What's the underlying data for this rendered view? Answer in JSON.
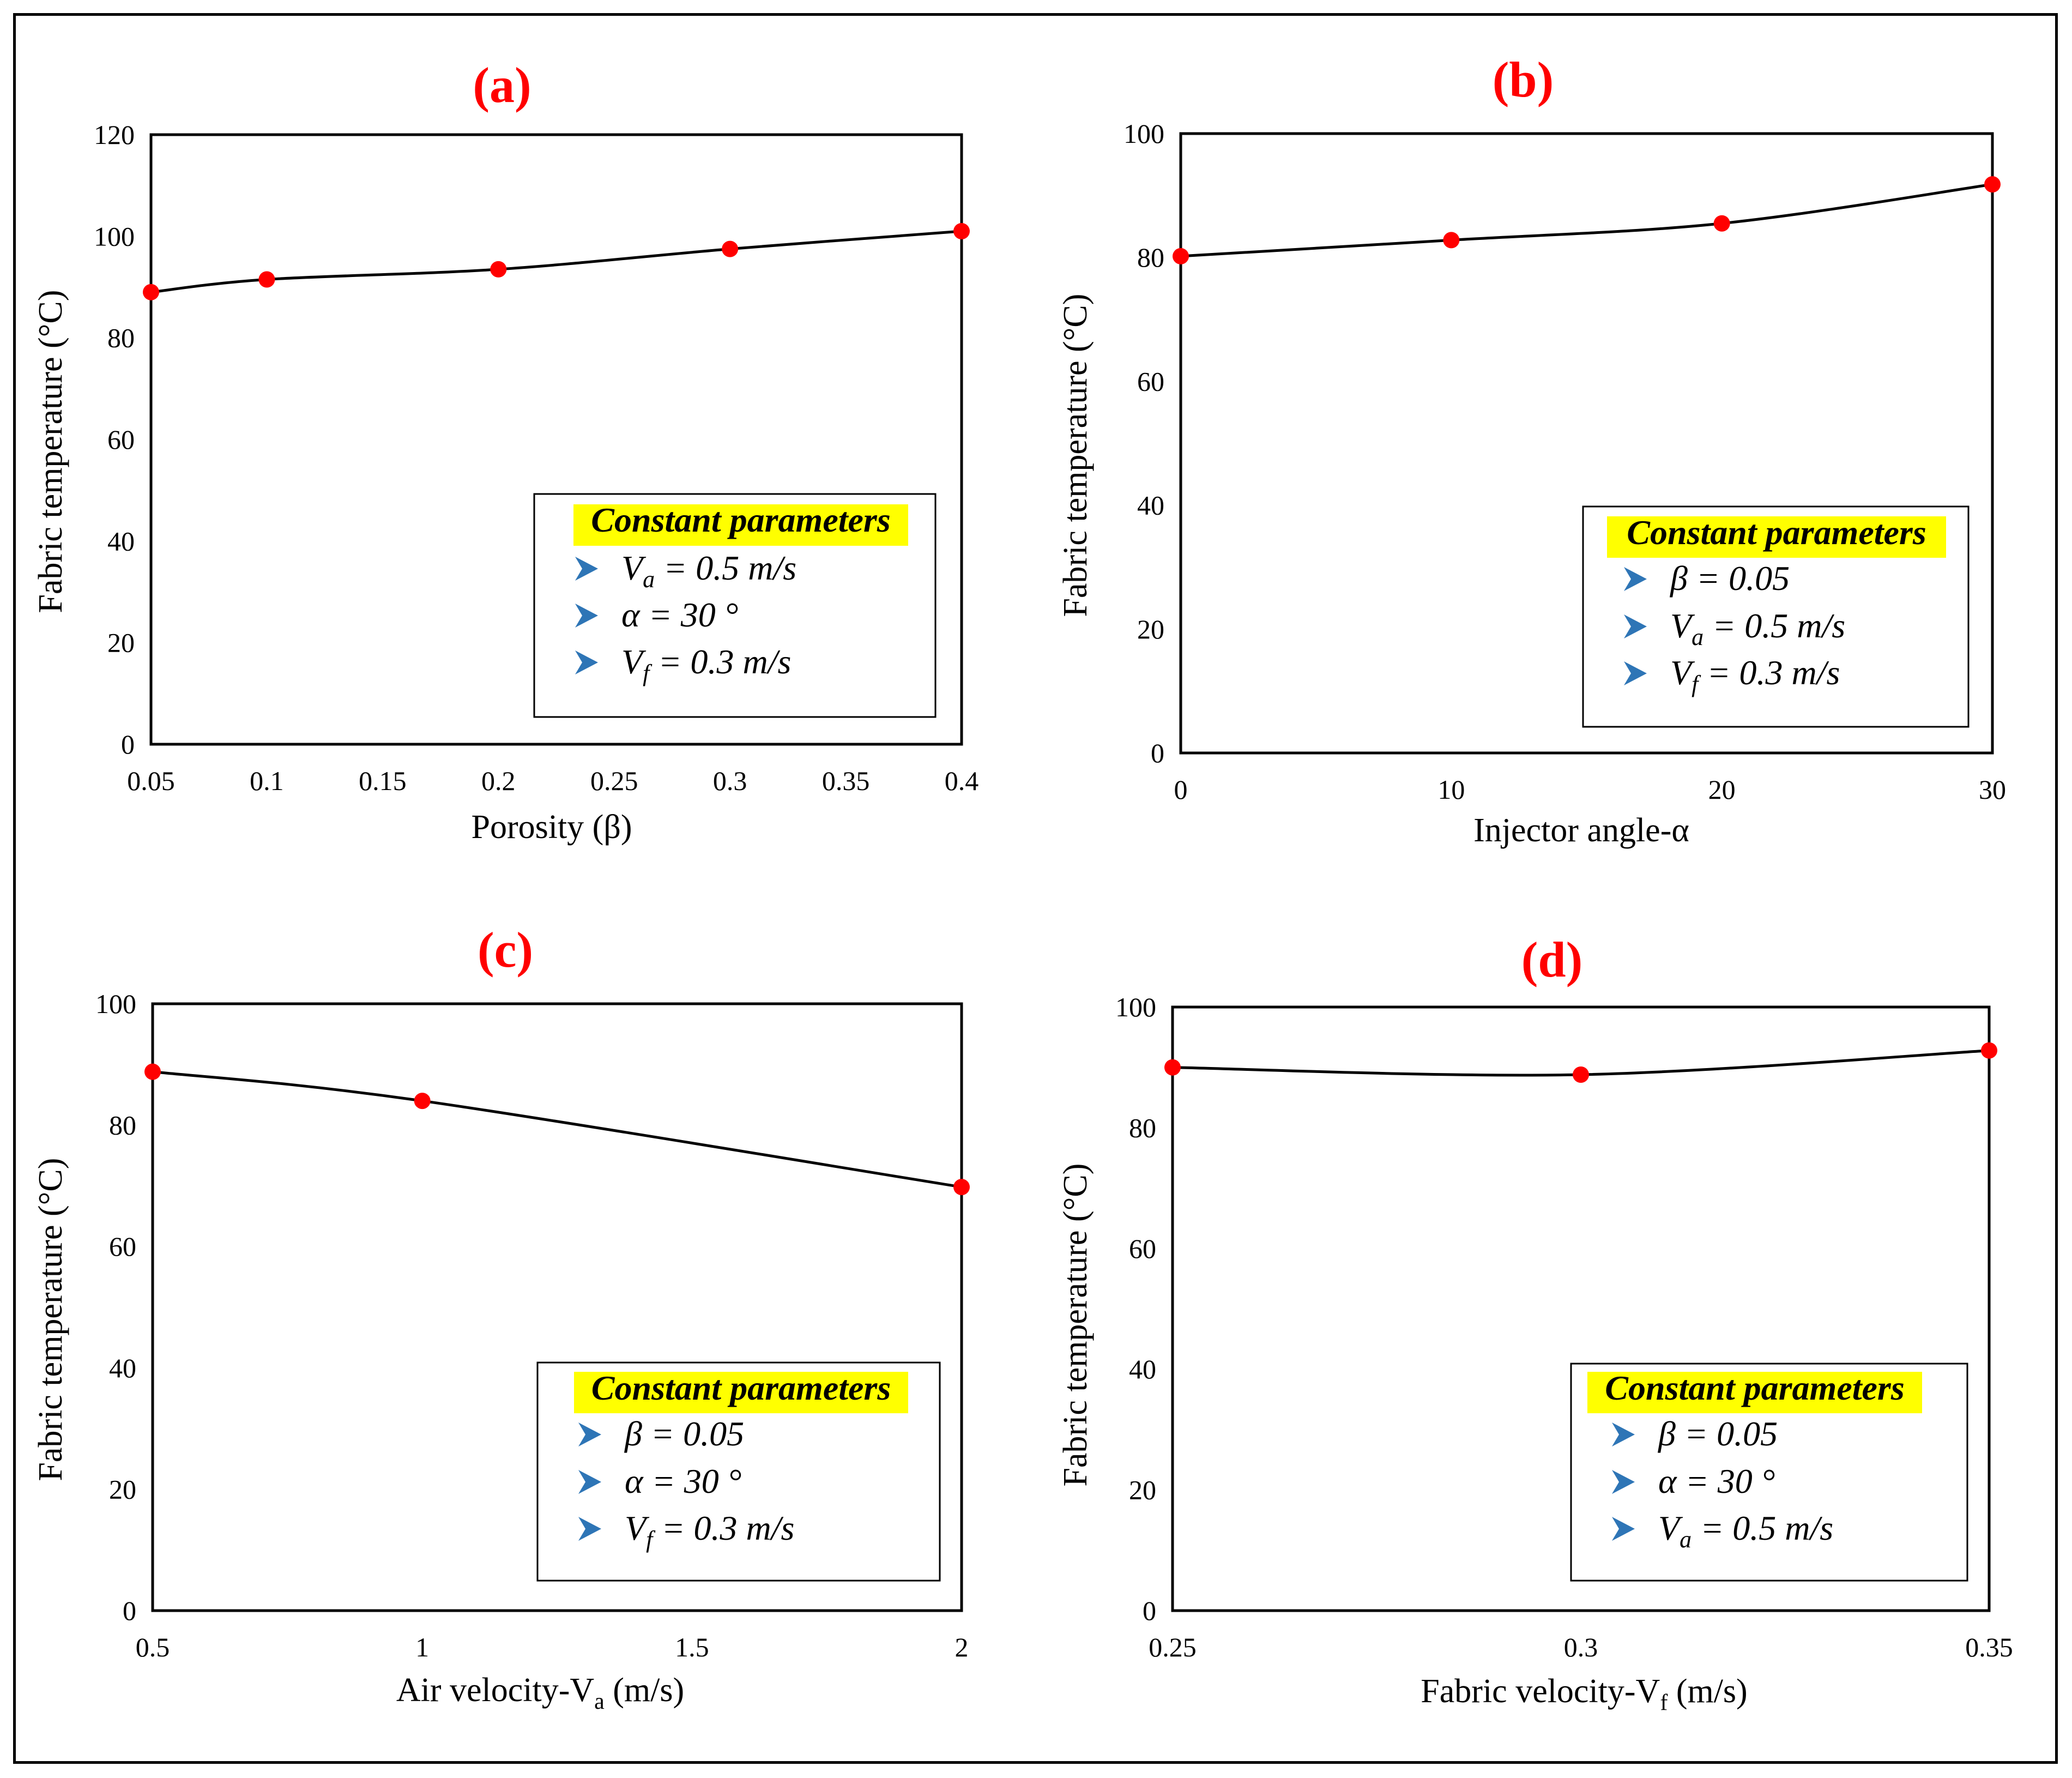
{
  "chart_data": [
    {
      "type": "line",
      "panel_label": "(a)",
      "xlabel": "Porosity (β)",
      "ylabel": "Fabric temperature (°C)",
      "xlim": [
        0.05,
        0.4
      ],
      "ylim": [
        0,
        120
      ],
      "xticks": [
        "0.05",
        "0.1",
        "0.15",
        "0.2",
        "0.25",
        "0.3",
        "0.35",
        "0.4"
      ],
      "yticks": [
        "0",
        "20",
        "40",
        "60",
        "80",
        "100",
        "120"
      ],
      "series": [
        {
          "name": "Fabric temperature",
          "x": [
            0.05,
            0.1,
            0.2,
            0.3,
            0.4
          ],
          "y": [
            89,
            91.5,
            93.5,
            97.5,
            101
          ]
        }
      ],
      "marker_color": "#ff0000",
      "legend": {
        "title": "Constant parameters",
        "items": [
          {
            "sym": "V",
            "sub": "a",
            "rest": " = 0.5 m/s"
          },
          {
            "sym": "α",
            "sub": "",
            "rest": "   = 30 °"
          },
          {
            "sym": "V",
            "sub": "f",
            "rest": " = 0.3 m/s"
          }
        ]
      }
    },
    {
      "type": "line",
      "panel_label": "(b)",
      "xlabel": "Injector angle-α",
      "ylabel": "Fabric temperature (°C)",
      "xlim": [
        0,
        30
      ],
      "ylim": [
        0,
        100
      ],
      "xticks": [
        "0",
        "10",
        "20",
        "30"
      ],
      "yticks": [
        "0",
        "20",
        "40",
        "60",
        "80",
        "100"
      ],
      "series": [
        {
          "name": "Fabric temperature",
          "x": [
            0,
            10,
            20,
            30
          ],
          "y": [
            80.2,
            82.8,
            85.5,
            91.8
          ]
        }
      ],
      "marker_color": "#ff0000",
      "legend": {
        "title": "Constant parameters",
        "items": [
          {
            "sym": "β",
            "sub": "",
            "rest": " = 0.05"
          },
          {
            "sym": "V",
            "sub": "a",
            "rest": " = 0.5 m/s"
          },
          {
            "sym": "V",
            "sub": "f",
            "rest": " = 0.3 m/s"
          }
        ]
      }
    },
    {
      "type": "line",
      "panel_label": "(c)",
      "xlabel": "Air velocity-V",
      "xlabel_sub": "a",
      "xlabel_tail": " (m/s)",
      "ylabel": "Fabric temperature (°C)",
      "xlim": [
        0.5,
        2
      ],
      "ylim": [
        0,
        100
      ],
      "xticks": [
        "0.5",
        "1",
        "1.5",
        "2"
      ],
      "yticks": [
        "0",
        "20",
        "40",
        "60",
        "80",
        "100"
      ],
      "series": [
        {
          "name": "Fabric temperature",
          "x": [
            0.5,
            1,
            2
          ],
          "y": [
            88.8,
            84,
            69.8
          ]
        }
      ],
      "marker_color": "#ff0000",
      "legend": {
        "title": "Constant parameters",
        "items": [
          {
            "sym": "β",
            "sub": "",
            "rest": " = 0.05"
          },
          {
            "sym": "α",
            "sub": "",
            "rest": "   = 30 °"
          },
          {
            "sym": "V",
            "sub": "f",
            "rest": " = 0.3 m/s"
          }
        ]
      }
    },
    {
      "type": "line",
      "panel_label": "(d)",
      "xlabel": "Fabric velocity-V",
      "xlabel_sub": "f",
      "xlabel_tail": " (m/s)",
      "ylabel": "Fabric temperature  (°C)",
      "xlim": [
        0.25,
        0.35
      ],
      "ylim": [
        0,
        100
      ],
      "xticks": [
        "0.25",
        "0.3",
        "0.35"
      ],
      "yticks": [
        "0",
        "20",
        "40",
        "60",
        "80",
        "100"
      ],
      "series": [
        {
          "name": "Fabric temperature",
          "x": [
            0.25,
            0.3,
            0.35
          ],
          "y": [
            90,
            88.8,
            92.8
          ]
        }
      ],
      "marker_color": "#ff0000",
      "legend": {
        "title": "Constant parameters",
        "items": [
          {
            "sym": "β",
            "sub": "",
            "rest": " = 0.05"
          },
          {
            "sym": "α",
            "sub": "",
            "rest": "   = 30 °"
          },
          {
            "sym": "V",
            "sub": "a",
            "rest": "  = 0.5 m/s"
          }
        ]
      }
    }
  ],
  "colors": {
    "marker": "#ff0000",
    "title": "#ff0000",
    "line": "#000000",
    "legend_highlight": "#ffff00",
    "arrow": "#2e75b6"
  }
}
